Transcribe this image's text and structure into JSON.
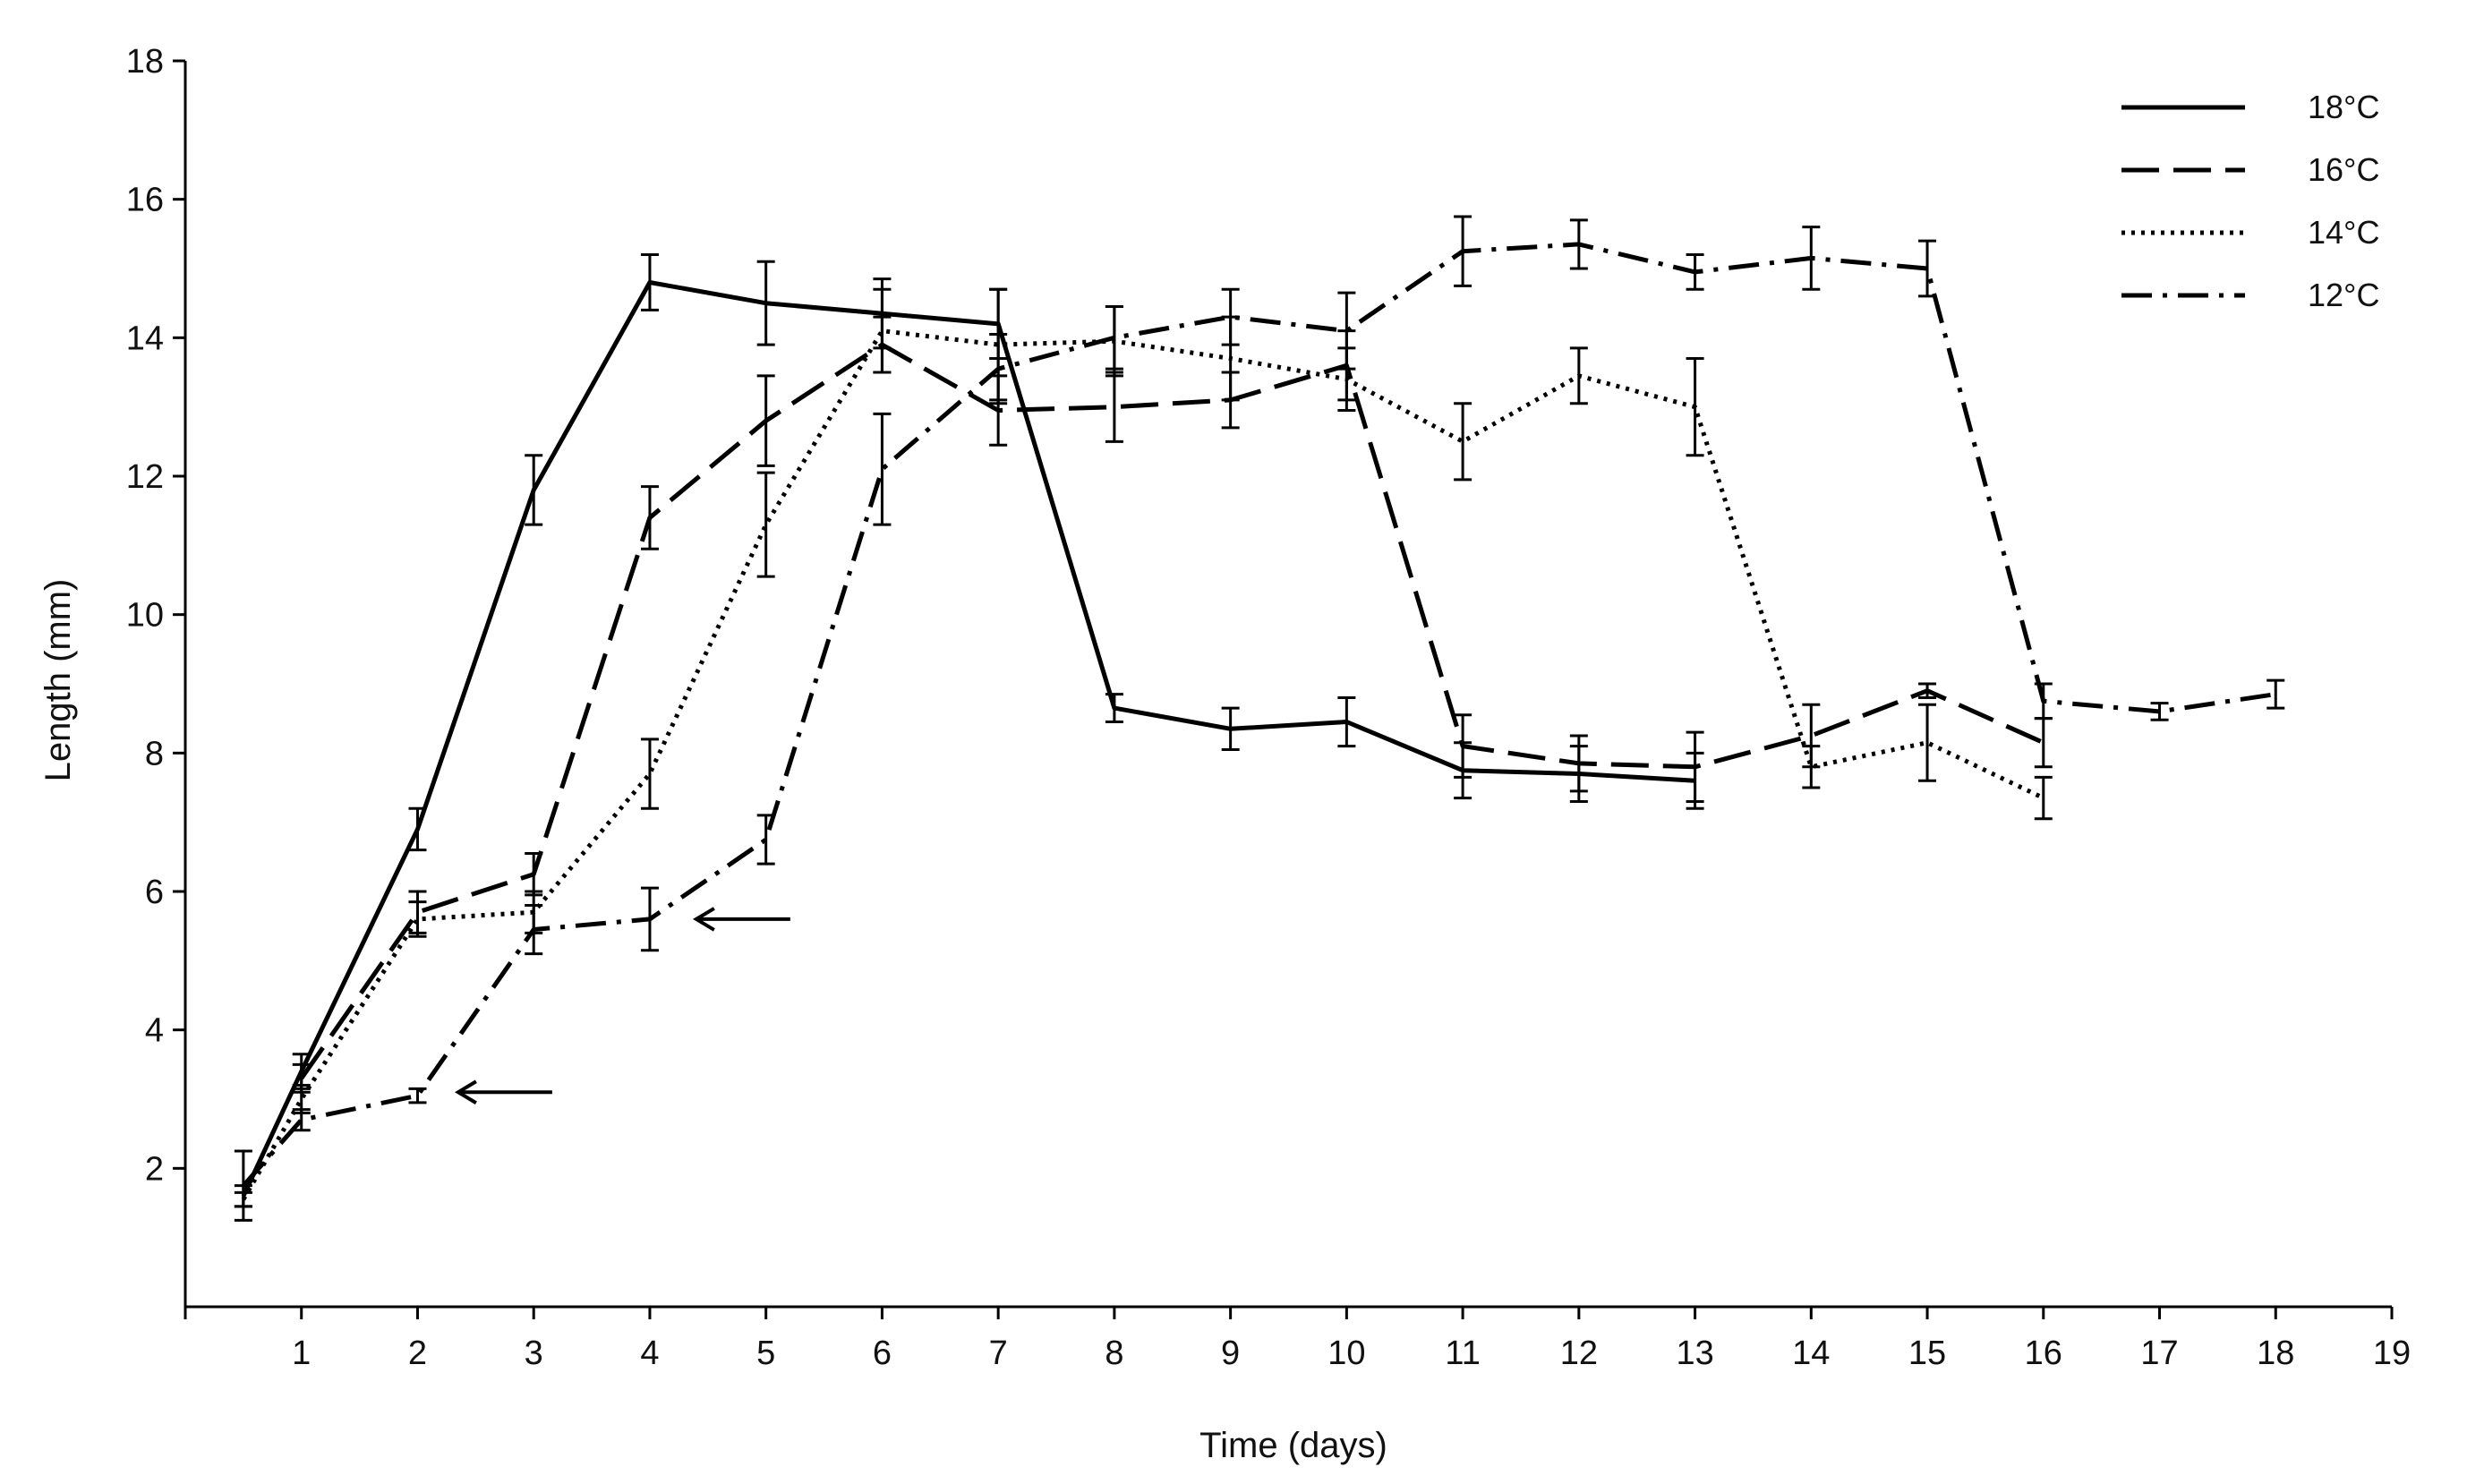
{
  "chart_data": {
    "type": "line",
    "xlabel": "Time (days)",
    "ylabel": "Length (mm)",
    "xlim": [
      0,
      19
    ],
    "ylim": [
      0,
      18
    ],
    "x_ticks": [
      1,
      2,
      3,
      4,
      5,
      6,
      7,
      8,
      9,
      10,
      11,
      12,
      13,
      14,
      15,
      16,
      17,
      18,
      19
    ],
    "y_ticks": [
      2,
      4,
      6,
      8,
      10,
      12,
      14,
      16,
      18
    ],
    "grid": false,
    "legend_position": "top-right",
    "series": [
      {
        "name": "18°C",
        "dash": "solid",
        "x": [
          0.5,
          1,
          2,
          3,
          4,
          5,
          6,
          7,
          8,
          9,
          10,
          11,
          12,
          13
        ],
        "y": [
          1.6,
          3.4,
          6.9,
          11.8,
          14.8,
          14.5,
          14.35,
          14.2,
          8.65,
          8.35,
          8.45,
          7.75,
          7.7,
          7.6
        ],
        "err": [
          0.15,
          0.25,
          0.3,
          0.5,
          0.4,
          0.6,
          0.5,
          0.5,
          0.2,
          0.3,
          0.35,
          0.4,
          0.4,
          0.4
        ]
      },
      {
        "name": "16°C",
        "dash": "dashed",
        "x": [
          1,
          2,
          3,
          4,
          5,
          6,
          7,
          8,
          9,
          10,
          11,
          12,
          13,
          14,
          15,
          16
        ],
        "y": [
          3.3,
          5.7,
          6.25,
          11.4,
          12.8,
          13.9,
          12.95,
          13.0,
          13.1,
          13.6,
          8.1,
          7.85,
          7.8,
          8.25,
          8.9,
          8.15
        ],
        "err": [
          0.2,
          0.3,
          0.3,
          0.45,
          0.65,
          0.4,
          0.5,
          0.5,
          0.4,
          0.5,
          0.45,
          0.4,
          0.5,
          0.45,
          0.1,
          0.35
        ]
      },
      {
        "name": "14°C",
        "dash": "dotted",
        "x": [
          0.5,
          1,
          2,
          3,
          4,
          5,
          6,
          7,
          8,
          9,
          10,
          11,
          12,
          13,
          14,
          15,
          16
        ],
        "y": [
          1.55,
          3.0,
          5.6,
          5.7,
          7.7,
          11.3,
          14.1,
          13.9,
          13.95,
          13.7,
          13.4,
          12.5,
          13.45,
          13.0,
          7.8,
          8.15,
          7.35
        ],
        "err": [
          0.1,
          0.2,
          0.25,
          0.3,
          0.5,
          0.75,
          0.6,
          0.8,
          0.5,
          0.6,
          0.45,
          0.55,
          0.4,
          0.7,
          0.3,
          0.55,
          0.3
        ]
      },
      {
        "name": "12°C",
        "dash": "dashdot",
        "x": [
          0.5,
          1,
          2,
          3,
          4,
          5,
          6,
          7,
          8,
          9,
          10,
          11,
          12,
          13,
          14,
          15,
          16,
          17,
          18
        ],
        "y": [
          1.75,
          2.7,
          3.05,
          5.45,
          5.6,
          6.75,
          12.1,
          13.55,
          14.0,
          14.3,
          14.1,
          15.25,
          15.35,
          14.95,
          15.15,
          15.0,
          8.75,
          8.6,
          8.85
        ],
        "err": [
          0.5,
          0.15,
          0.1,
          0.35,
          0.45,
          0.35,
          0.8,
          0.5,
          0.45,
          0.4,
          0.55,
          0.5,
          0.35,
          0.25,
          0.45,
          0.4,
          0.25,
          0.12,
          0.2
        ]
      }
    ],
    "annotations": [
      {
        "type": "arrow",
        "x": 4.4,
        "y": 5.6,
        "direction": "left"
      },
      {
        "type": "arrow",
        "x": 2.35,
        "y": 3.1,
        "direction": "left"
      }
    ]
  }
}
